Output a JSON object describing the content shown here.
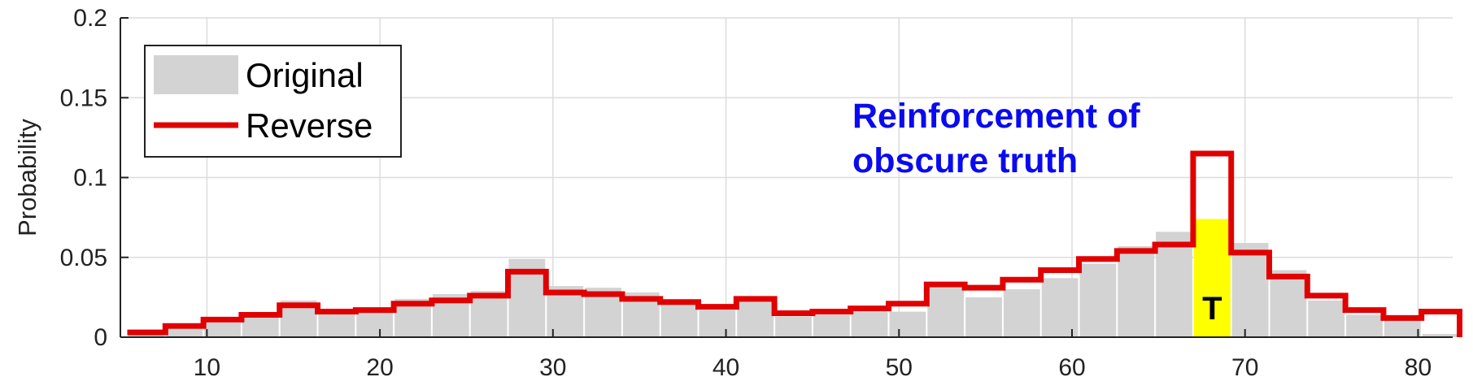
{
  "chart_data": {
    "type": "bar",
    "ylabel": "Probability",
    "xlabel": "",
    "xlim": [
      5,
      82
    ],
    "ylim": [
      0,
      0.2
    ],
    "xticks": [
      10,
      20,
      30,
      40,
      50,
      60,
      70,
      80
    ],
    "yticks": [
      0,
      0.05,
      0.1,
      0.15,
      0.2
    ],
    "ytick_labels": [
      "0",
      "0.05",
      "0.1",
      "0.15",
      "0.2"
    ],
    "grid": true,
    "legend_position": "top-left",
    "bin_edges": [
      5.4,
      7.6,
      9.8,
      12,
      14.2,
      16.4,
      18.6,
      20.8,
      23,
      25.2,
      27.4,
      29.6,
      31.8,
      34,
      36.2,
      38.4,
      40.6,
      42.8,
      45,
      47.2,
      49.4,
      51.6,
      53.8,
      56,
      58.2,
      60.4,
      62.6,
      64.8,
      67,
      69.2,
      71.4,
      73.6,
      75.8,
      78,
      80.2,
      82.4
    ],
    "series": [
      {
        "name": "Original",
        "style": "bars",
        "color": "#d3d3d3",
        "values": [
          0.002,
          0.005,
          0.009,
          0.013,
          0.023,
          0.016,
          0.017,
          0.024,
          0.027,
          0.029,
          0.049,
          0.032,
          0.031,
          0.028,
          0.022,
          0.017,
          0.024,
          0.013,
          0.014,
          0.016,
          0.016,
          0.031,
          0.025,
          0.03,
          0.037,
          0.046,
          0.057,
          0.066,
          0.074,
          0.059,
          0.042,
          0.023,
          0.014,
          0.011,
          0.002
        ]
      },
      {
        "name": "Reverse",
        "style": "stairs",
        "color": "#e00000",
        "values": [
          0.003,
          0.007,
          0.011,
          0.014,
          0.02,
          0.016,
          0.017,
          0.021,
          0.023,
          0.026,
          0.041,
          0.028,
          0.027,
          0.024,
          0.022,
          0.019,
          0.024,
          0.015,
          0.016,
          0.018,
          0.021,
          0.033,
          0.031,
          0.036,
          0.042,
          0.049,
          0.054,
          0.058,
          0.115,
          0.053,
          0.038,
          0.026,
          0.017,
          0.012,
          0.016
        ]
      }
    ],
    "highlight_bin": {
      "index": 28,
      "value": 0.074,
      "color": "#ffff00",
      "label": "T"
    },
    "annotation": {
      "lines": [
        "Reinforcement of",
        "obscure truth"
      ],
      "color": "#0a0af0"
    }
  }
}
